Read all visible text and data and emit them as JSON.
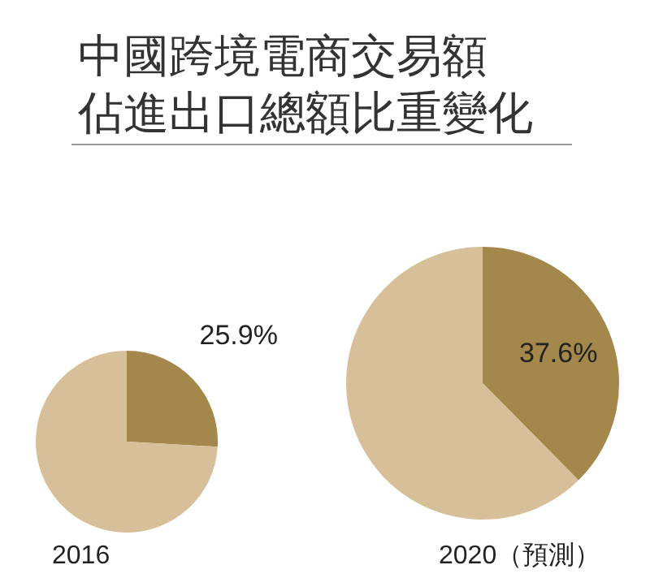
{
  "chart_data": [
    {
      "type": "pie",
      "title": "中國跨境電商交易額佔進出口總額比重變化",
      "xlabel": "2016",
      "categories": [
        null,
        null
      ],
      "values": [
        25.9,
        74.1
      ],
      "colors": [
        "#a4874a",
        "#d6bf99"
      ],
      "value_labels": [
        "25.9%",
        null
      ]
    },
    {
      "type": "pie",
      "xlabel": "2020（預測）",
      "categories": [
        null,
        null
      ],
      "values": [
        37.6,
        62.4
      ],
      "colors": [
        "#a4874a",
        "#d6bf99"
      ],
      "value_labels": [
        "37.6%",
        null
      ]
    }
  ]
}
